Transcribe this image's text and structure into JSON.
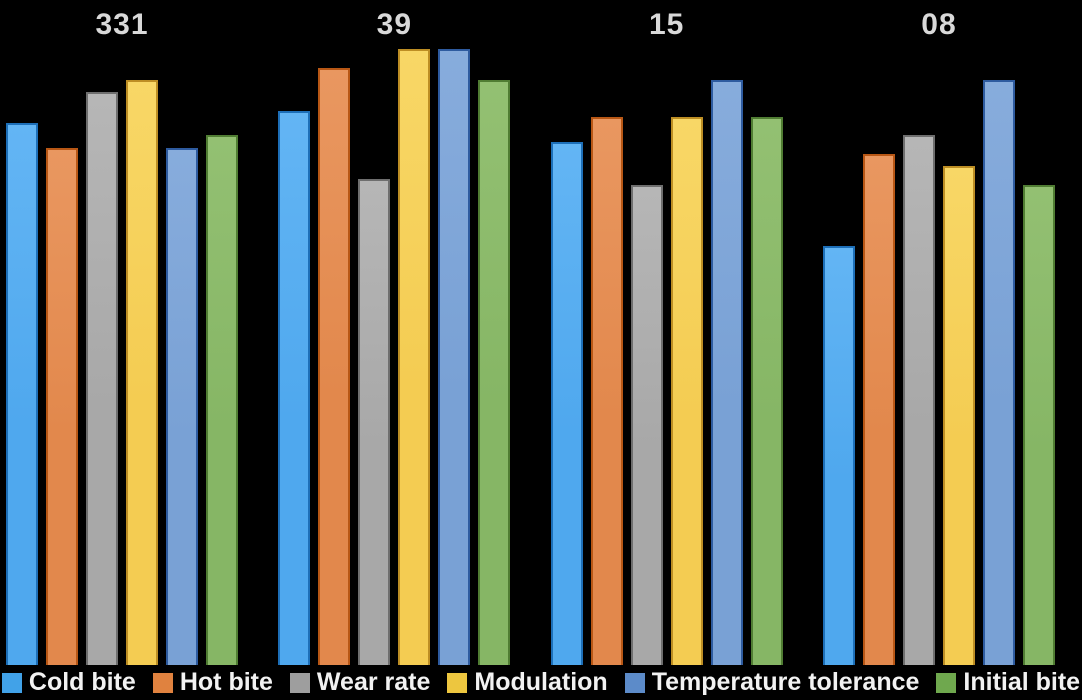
{
  "chart_data": {
    "type": "bar",
    "title": "",
    "categories": [
      "331",
      "39",
      "15",
      "08"
    ],
    "series": [
      {
        "name": "Cold bite",
        "values": [
          8.8,
          9.0,
          8.5,
          6.8
        ],
        "fill": "#4FA8EE",
        "fill_light": "#63B5F4",
        "border": "#1D6FB8",
        "swatch": "#41A2E8"
      },
      {
        "name": "Hot bite",
        "values": [
          8.4,
          9.7,
          8.9,
          8.3
        ],
        "fill": "#E2884C",
        "fill_light": "#E99760",
        "border": "#B85715",
        "swatch": "#E0823F"
      },
      {
        "name": "Wear rate",
        "values": [
          9.3,
          7.9,
          7.8,
          8.6
        ],
        "fill": "#A8A8A8",
        "fill_light": "#B6B6B6",
        "border": "#6E6E6E",
        "swatch": "#9E9E9E"
      },
      {
        "name": "Modulation",
        "values": [
          9.5,
          10.0,
          8.9,
          8.1
        ],
        "fill": "#F4CC52",
        "fill_light": "#F8D766",
        "border": "#BD8E24",
        "swatch": "#EDC63F"
      },
      {
        "name": "Temperature tolerance",
        "values": [
          8.4,
          10.0,
          9.5,
          9.5
        ],
        "fill": "#79A1D5",
        "fill_light": "#87ACDC",
        "border": "#2E5B9F",
        "swatch": "#5C8BC9"
      },
      {
        "name": "Initial bite",
        "values": [
          8.6,
          9.5,
          8.9,
          7.8
        ],
        "fill": "#86B665",
        "fill_light": "#93C072",
        "border": "#507D33",
        "swatch": "#6FA84E"
      }
    ],
    "ylim": [
      0,
      10.8
    ],
    "legend_position": "bottom",
    "grid": false,
    "background": "#000000",
    "category_label_color": "#D9D9D9",
    "legend_text_color": "#F2F2F2"
  }
}
